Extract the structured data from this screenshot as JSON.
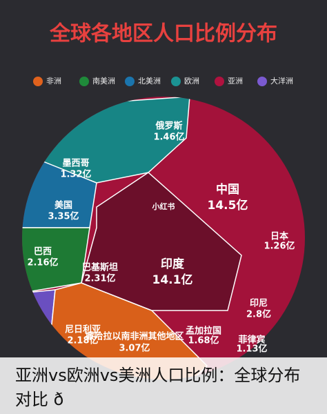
{
  "header": {
    "title": "全球各地区人口比例分布"
  },
  "legend": [
    "非洲",
    "南美洲",
    "北美洲",
    "欧洲",
    "亚洲",
    "大洋洲"
  ],
  "regions": [
    {
      "name": "中国",
      "value": "14.5亿"
    },
    {
      "name": "印度",
      "value": "14.1亿"
    },
    {
      "name": "美国",
      "value": "3.35亿"
    },
    {
      "name": "巴西",
      "value": "2.16亿"
    },
    {
      "name": "墨西哥",
      "value": "1.32亿"
    },
    {
      "name": "俄罗斯",
      "value": "1.46亿"
    },
    {
      "name": "巴基斯坦",
      "value": "2.31亿"
    },
    {
      "name": "印尼",
      "value": "2.8亿"
    },
    {
      "name": "日本",
      "value": "1.26亿"
    },
    {
      "name": "菲律宾",
      "value": "1.13亿"
    },
    {
      "name": "孟加拉国",
      "value": "1.68亿"
    },
    {
      "name": "撒哈拉以南非洲其他地区",
      "value": "3.07亿"
    },
    {
      "name": "尼日利亚",
      "value": "2.18亿"
    }
  ],
  "watermark": "小红书",
  "caption": [
    "亚洲vs欧洲vs美洲人口比例：全球分布",
    "对比 ð"
  ]
}
